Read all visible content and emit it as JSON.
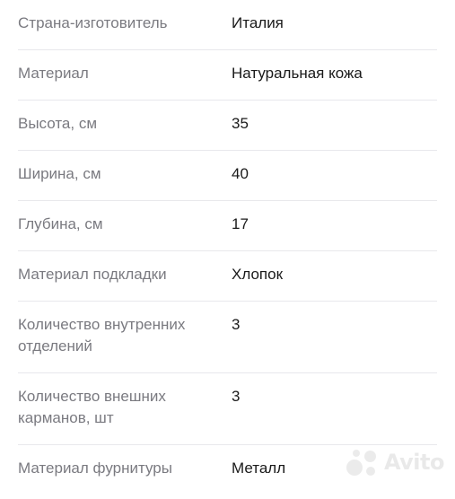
{
  "specs": [
    {
      "label": "Страна-изготовитель",
      "value": "Италия"
    },
    {
      "label": "Материал",
      "value": "Натуральная кожа"
    },
    {
      "label": "Высота, см",
      "value": "35"
    },
    {
      "label": "Ширина, см",
      "value": "40"
    },
    {
      "label": "Глубина, см",
      "value": "17"
    },
    {
      "label": "Материал подкладки",
      "value": "Хлопок"
    },
    {
      "label": "Количество внутренних отделений",
      "value": "3"
    },
    {
      "label": "Количество внешних карманов, шт",
      "value": "3"
    },
    {
      "label": "Материал фурнитуры",
      "value": "Металл"
    }
  ],
  "watermark": {
    "text": "Avito",
    "icon": "avito-logo-icon"
  }
}
